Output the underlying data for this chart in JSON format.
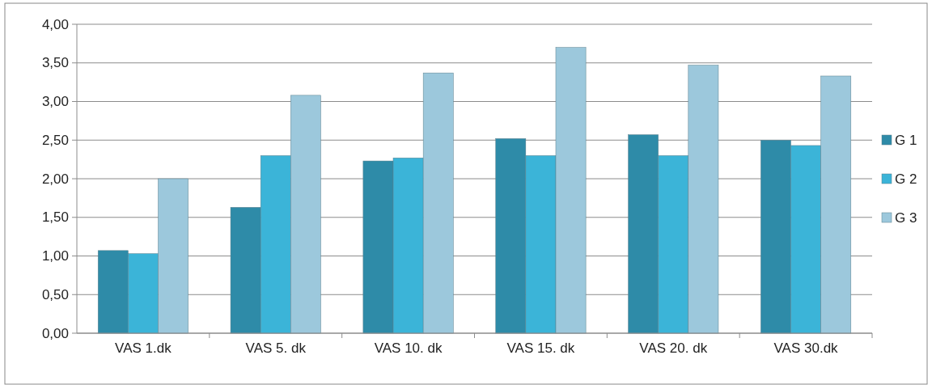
{
  "chart_data": {
    "type": "bar",
    "categories": [
      "VAS 1.dk",
      "VAS 5. dk",
      "VAS 10. dk",
      "VAS 15. dk",
      "VAS 20. dk",
      "VAS 30.dk"
    ],
    "series": [
      {
        "name": "G 1",
        "color": "#2e8ba8",
        "values": [
          1.07,
          1.63,
          2.23,
          2.52,
          2.57,
          2.5
        ]
      },
      {
        "name": "G 2",
        "color": "#3bb4d8",
        "values": [
          1.03,
          2.3,
          2.27,
          2.3,
          2.3,
          2.43
        ]
      },
      {
        "name": "G 3",
        "color": "#9cc8dc",
        "values": [
          2.0,
          3.08,
          3.37,
          3.7,
          3.47,
          3.33
        ]
      }
    ],
    "ylim": [
      0,
      4
    ],
    "yticks": [
      {
        "value": 0,
        "label": "0,00"
      },
      {
        "value": 0.5,
        "label": "0,50"
      },
      {
        "value": 1,
        "label": "1,00"
      },
      {
        "value": 1.5,
        "label": "1,50"
      },
      {
        "value": 2,
        "label": "2,00"
      },
      {
        "value": 2.5,
        "label": "2,50"
      },
      {
        "value": 3,
        "label": "3,00"
      },
      {
        "value": 3.5,
        "label": "3,50"
      },
      {
        "value": 4,
        "label": "4,00"
      }
    ],
    "grid": "y",
    "legend": "right"
  }
}
